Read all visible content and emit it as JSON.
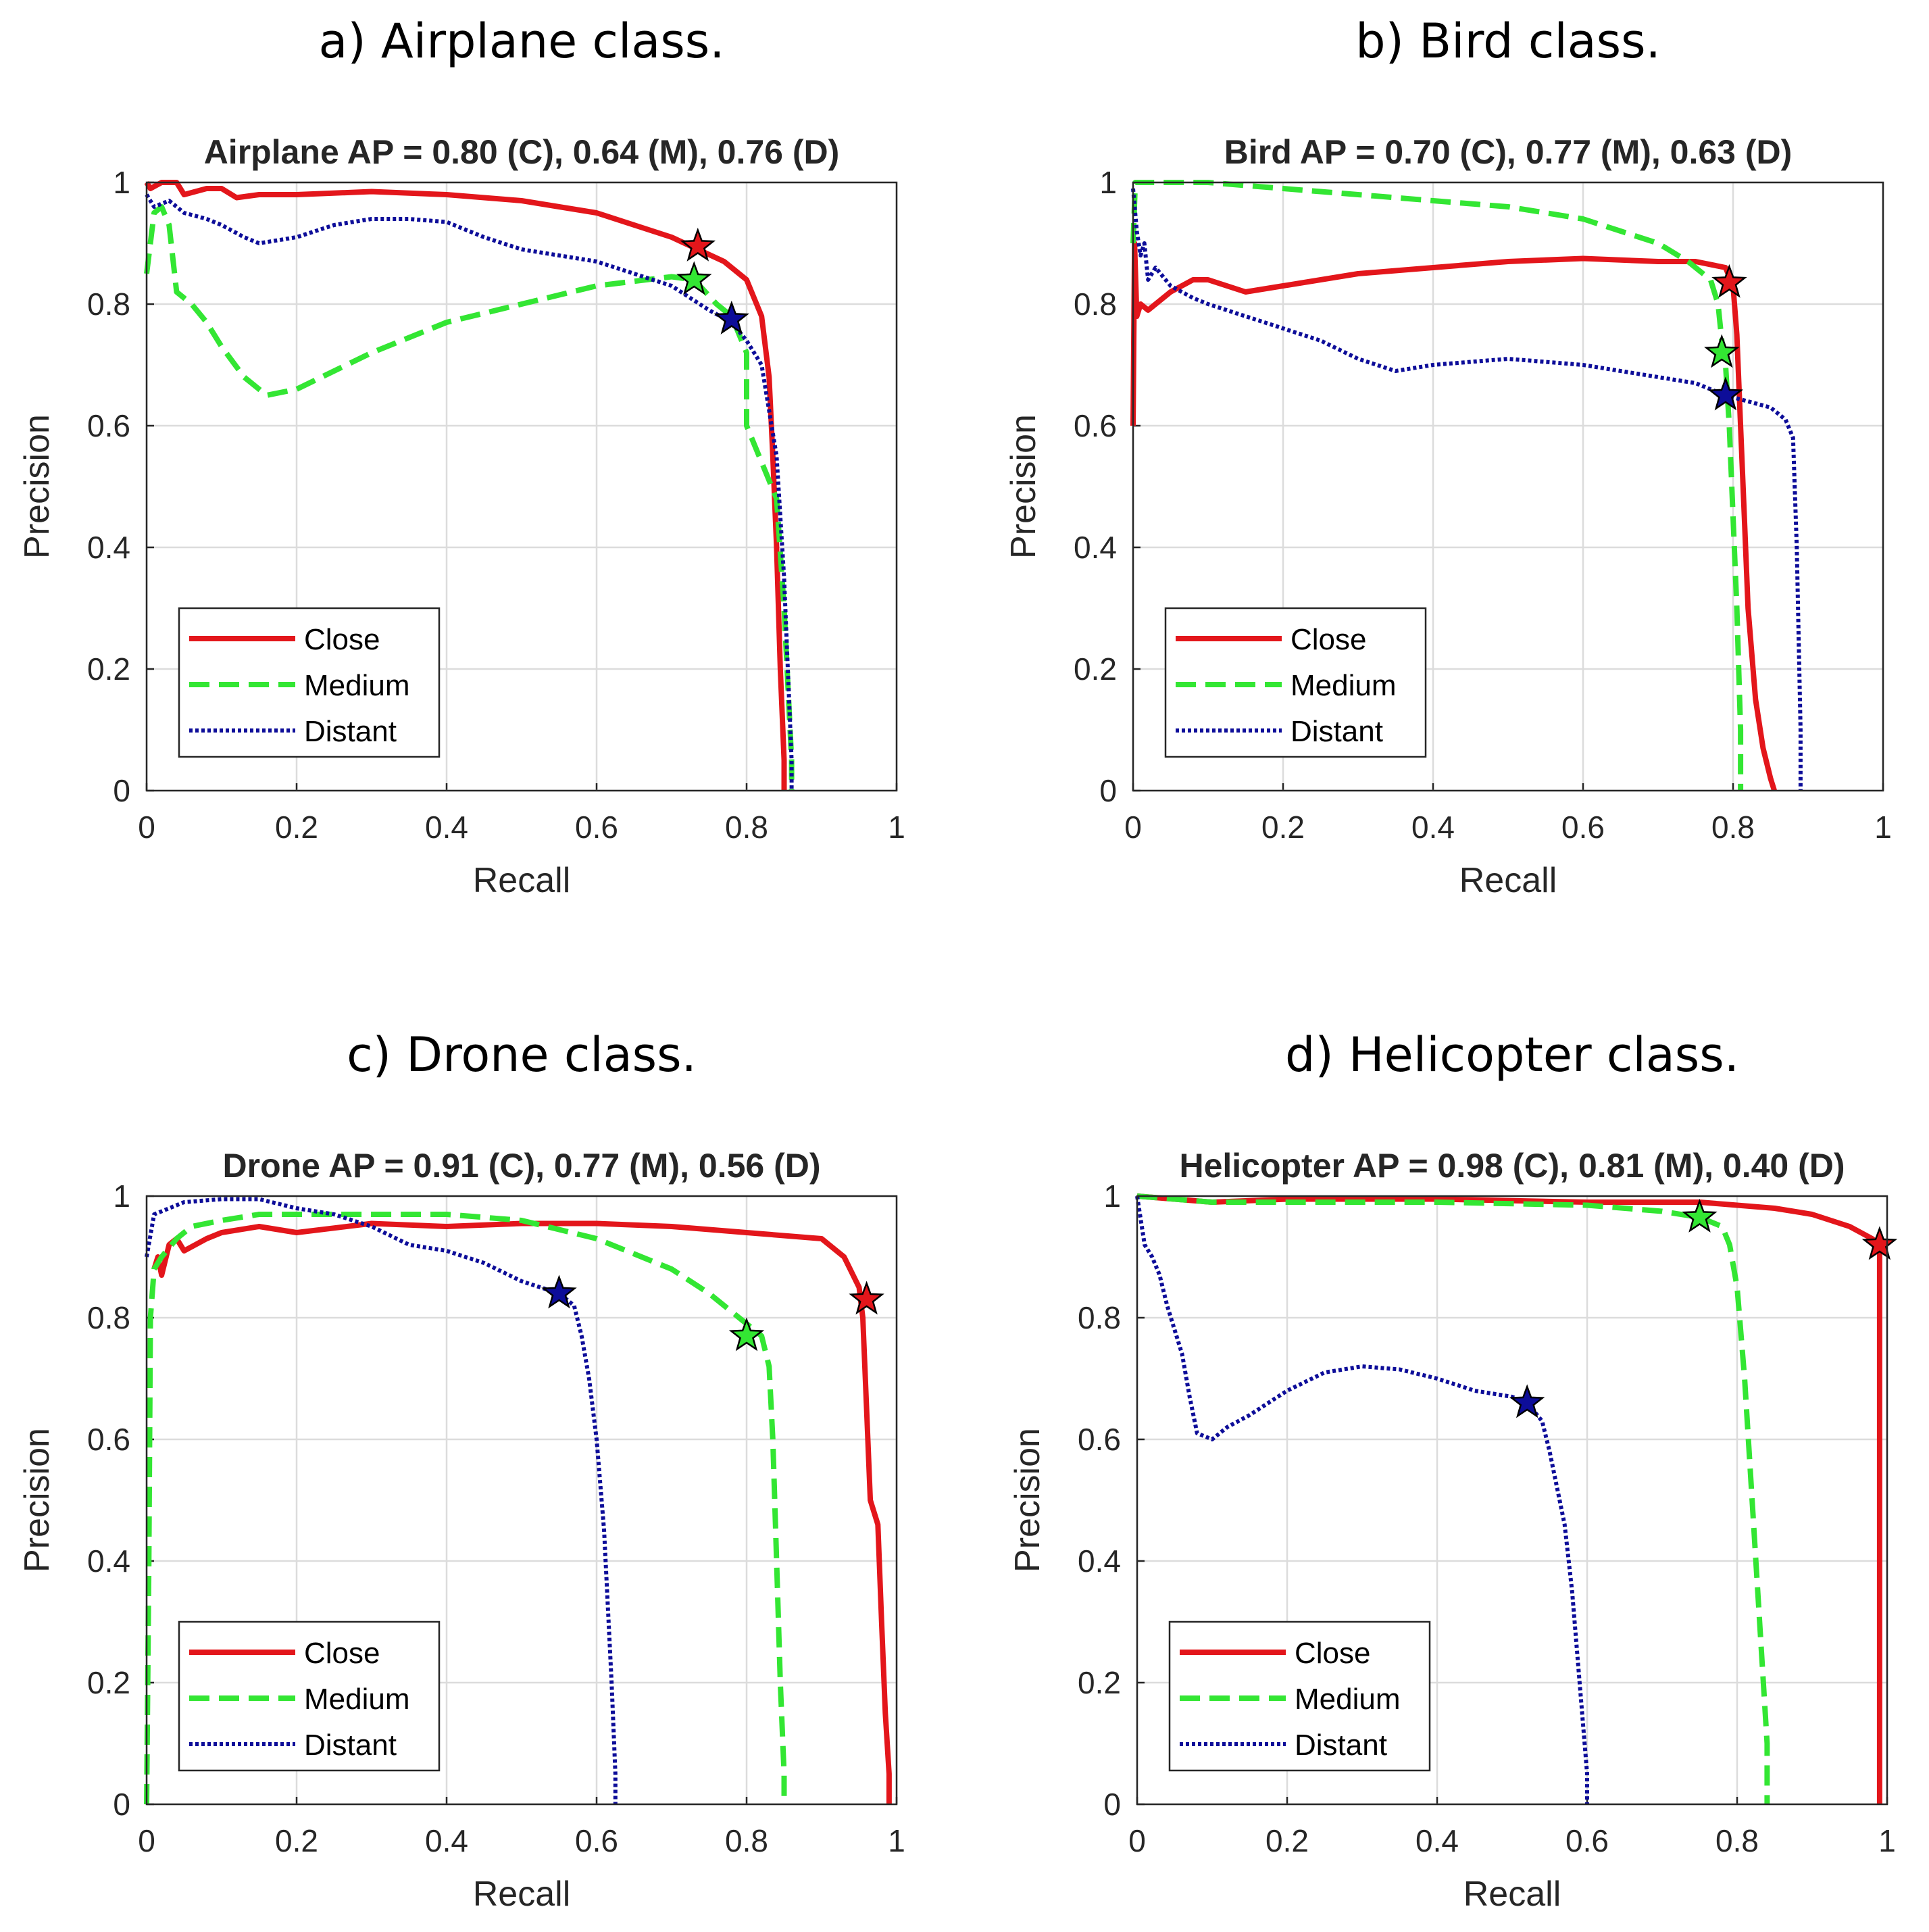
{
  "colors": {
    "close": "#e3161b",
    "medium": "#33e633",
    "distant": "#0d0d99",
    "grid": "#dcdcdc",
    "axis": "#262626"
  },
  "chart_data": [
    {
      "type": "line",
      "caption": "a) Airplane class.",
      "title": "Airplane AP = 0.80 (C), 0.64 (M), 0.76 (D)",
      "xlabel": "Recall",
      "ylabel": "Precision",
      "xlim": [
        0,
        1
      ],
      "ylim": [
        0,
        1
      ],
      "xticks": [
        "0",
        "0.2",
        "0.4",
        "0.6",
        "0.8",
        "1"
      ],
      "yticks": [
        "0",
        "0.2",
        "0.4",
        "0.6",
        "0.8",
        "1"
      ],
      "grid": true,
      "legend_position": "bottom-left",
      "series": [
        {
          "name": "Close",
          "style": "solid",
          "x": [
            0,
            0.005,
            0.02,
            0.04,
            0.05,
            0.08,
            0.1,
            0.12,
            0.15,
            0.2,
            0.3,
            0.4,
            0.5,
            0.6,
            0.7,
            0.735,
            0.77,
            0.8,
            0.82,
            0.83,
            0.835,
            0.84,
            0.845,
            0.85,
            0.85
          ],
          "y": [
            1,
            0.99,
            1,
            1,
            0.98,
            0.99,
            0.99,
            0.975,
            0.98,
            0.98,
            0.985,
            0.98,
            0.97,
            0.95,
            0.91,
            0.89,
            0.87,
            0.84,
            0.78,
            0.68,
            0.55,
            0.4,
            0.2,
            0.05,
            0
          ],
          "marker": [
            0.735,
            0.895
          ]
        },
        {
          "name": "Medium",
          "style": "dashed",
          "x": [
            0,
            0.01,
            0.02,
            0.03,
            0.04,
            0.06,
            0.08,
            0.1,
            0.13,
            0.16,
            0.2,
            0.3,
            0.4,
            0.5,
            0.6,
            0.7,
            0.73,
            0.76,
            0.78,
            0.8,
            0.8,
            0.82,
            0.84,
            0.85,
            0.86,
            0.86
          ],
          "y": [
            0.85,
            0.95,
            0.96,
            0.93,
            0.82,
            0.8,
            0.77,
            0.73,
            0.68,
            0.65,
            0.66,
            0.72,
            0.77,
            0.8,
            0.83,
            0.845,
            0.84,
            0.8,
            0.78,
            0.72,
            0.6,
            0.54,
            0.48,
            0.3,
            0.05,
            0
          ],
          "marker": [
            0.73,
            0.84
          ]
        },
        {
          "name": "Distant",
          "style": "dotted",
          "x": [
            0,
            0.01,
            0.03,
            0.05,
            0.08,
            0.1,
            0.13,
            0.15,
            0.2,
            0.25,
            0.3,
            0.35,
            0.4,
            0.45,
            0.5,
            0.6,
            0.7,
            0.75,
            0.78,
            0.8,
            0.82,
            0.84,
            0.85,
            0.855,
            0.86,
            0.86
          ],
          "y": [
            0.98,
            0.96,
            0.97,
            0.95,
            0.94,
            0.93,
            0.91,
            0.9,
            0.91,
            0.93,
            0.94,
            0.94,
            0.935,
            0.91,
            0.89,
            0.87,
            0.83,
            0.79,
            0.77,
            0.74,
            0.7,
            0.55,
            0.35,
            0.2,
            0.05,
            0
          ],
          "marker": [
            0.78,
            0.775
          ]
        }
      ]
    },
    {
      "type": "line",
      "caption": "b) Bird class.",
      "title": "Bird AP = 0.70 (C), 0.77 (M), 0.63 (D)",
      "xlabel": "Recall",
      "ylabel": "Precision",
      "xlim": [
        0,
        1
      ],
      "ylim": [
        0,
        1
      ],
      "xticks": [
        "0",
        "0.2",
        "0.4",
        "0.6",
        "0.8",
        "1"
      ],
      "yticks": [
        "0",
        "0.2",
        "0.4",
        "0.6",
        "0.8",
        "1"
      ],
      "grid": true,
      "legend_position": "bottom-left",
      "series": [
        {
          "name": "Close",
          "style": "solid",
          "x": [
            0,
            0.002,
            0.005,
            0.01,
            0.02,
            0.03,
            0.05,
            0.08,
            0.1,
            0.15,
            0.2,
            0.3,
            0.4,
            0.5,
            0.6,
            0.7,
            0.75,
            0.79,
            0.8,
            0.805,
            0.81,
            0.815,
            0.82,
            0.83,
            0.84,
            0.85,
            0.855
          ],
          "y": [
            0.6,
            0.9,
            0.78,
            0.8,
            0.79,
            0.8,
            0.82,
            0.84,
            0.84,
            0.82,
            0.83,
            0.85,
            0.86,
            0.87,
            0.875,
            0.87,
            0.87,
            0.86,
            0.83,
            0.75,
            0.6,
            0.45,
            0.3,
            0.15,
            0.07,
            0.02,
            0
          ],
          "marker": [
            0.795,
            0.835
          ]
        },
        {
          "name": "Medium",
          "style": "dashed",
          "x": [
            0,
            0.003,
            0.01,
            0.05,
            0.1,
            0.2,
            0.3,
            0.4,
            0.5,
            0.6,
            0.7,
            0.74,
            0.77,
            0.78,
            0.785,
            0.79,
            0.795,
            0.8,
            0.805,
            0.81,
            0.81
          ],
          "y": [
            0.9,
            1,
            1,
            1,
            1,
            0.99,
            0.98,
            0.97,
            0.96,
            0.94,
            0.9,
            0.87,
            0.84,
            0.8,
            0.74,
            0.7,
            0.6,
            0.45,
            0.3,
            0.1,
            0
          ],
          "marker": [
            0.785,
            0.72
          ]
        },
        {
          "name": "Distant",
          "style": "dotted",
          "x": [
            0,
            0.005,
            0.01,
            0.015,
            0.02,
            0.03,
            0.05,
            0.08,
            0.1,
            0.15,
            0.2,
            0.25,
            0.3,
            0.35,
            0.4,
            0.5,
            0.6,
            0.7,
            0.75,
            0.79,
            0.82,
            0.85,
            0.87,
            0.88,
            0.885,
            0.89,
            0.89
          ],
          "y": [
            0.99,
            0.92,
            0.88,
            0.9,
            0.84,
            0.86,
            0.83,
            0.81,
            0.8,
            0.78,
            0.76,
            0.74,
            0.71,
            0.69,
            0.7,
            0.71,
            0.7,
            0.68,
            0.67,
            0.65,
            0.64,
            0.63,
            0.61,
            0.58,
            0.4,
            0.1,
            0
          ],
          "marker": [
            0.79,
            0.65
          ]
        }
      ]
    },
    {
      "type": "line",
      "caption": "c) Drone class.",
      "title": "Drone AP = 0.91 (C), 0.77 (M), 0.56 (D)",
      "xlabel": "Recall",
      "ylabel": "Precision",
      "xlim": [
        0,
        1
      ],
      "ylim": [
        0,
        1
      ],
      "xticks": [
        "0",
        "0.2",
        "0.4",
        "0.6",
        "0.8",
        "1"
      ],
      "yticks": [
        "0",
        "0.2",
        "0.4",
        "0.6",
        "0.8",
        "1"
      ],
      "grid": true,
      "legend_position": "bottom-left",
      "series": [
        {
          "name": "Close",
          "style": "solid",
          "x": [
            0.01,
            0.015,
            0.02,
            0.03,
            0.04,
            0.05,
            0.08,
            0.1,
            0.15,
            0.2,
            0.3,
            0.4,
            0.5,
            0.6,
            0.7,
            0.8,
            0.9,
            0.93,
            0.95,
            0.955,
            0.96,
            0.965,
            0.97,
            0.975,
            0.98,
            0.985,
            0.99,
            0.99
          ],
          "y": [
            0.88,
            0.9,
            0.87,
            0.92,
            0.93,
            0.91,
            0.93,
            0.94,
            0.95,
            0.94,
            0.955,
            0.95,
            0.955,
            0.955,
            0.95,
            0.94,
            0.93,
            0.9,
            0.85,
            0.8,
            0.65,
            0.5,
            0.48,
            0.46,
            0.3,
            0.15,
            0.05,
            0
          ],
          "marker": [
            0.96,
            0.83
          ]
        },
        {
          "name": "Medium",
          "style": "dashed",
          "x": [
            0,
            0.003,
            0.005,
            0.01,
            0.02,
            0.04,
            0.06,
            0.1,
            0.15,
            0.2,
            0.3,
            0.4,
            0.5,
            0.6,
            0.7,
            0.75,
            0.8,
            0.82,
            0.83,
            0.835,
            0.84,
            0.845,
            0.85,
            0.85
          ],
          "y": [
            0,
            0.4,
            0.8,
            0.88,
            0.9,
            0.93,
            0.95,
            0.96,
            0.97,
            0.97,
            0.97,
            0.97,
            0.96,
            0.93,
            0.88,
            0.84,
            0.79,
            0.77,
            0.72,
            0.6,
            0.4,
            0.2,
            0.05,
            0
          ],
          "marker": [
            0.8,
            0.77
          ]
        },
        {
          "name": "Distant",
          "style": "dotted",
          "x": [
            0,
            0.01,
            0.03,
            0.05,
            0.1,
            0.15,
            0.2,
            0.25,
            0.3,
            0.35,
            0.4,
            0.45,
            0.5,
            0.55,
            0.57,
            0.58,
            0.59,
            0.6,
            0.61,
            0.62,
            0.625,
            0.625
          ],
          "y": [
            0.9,
            0.97,
            0.98,
            0.99,
            0.995,
            0.995,
            0.98,
            0.97,
            0.95,
            0.92,
            0.91,
            0.89,
            0.86,
            0.84,
            0.82,
            0.77,
            0.7,
            0.6,
            0.45,
            0.2,
            0.05,
            0
          ],
          "marker": [
            0.55,
            0.84
          ]
        }
      ]
    },
    {
      "type": "line",
      "caption": "d) Helicopter class.",
      "title": "Helicopter AP = 0.98 (C), 0.81 (M), 0.40 (D)",
      "xlabel": "Recall",
      "ylabel": "Precision",
      "xlim": [
        0,
        1
      ],
      "ylim": [
        0,
        1
      ],
      "xticks": [
        "0",
        "0.2",
        "0.4",
        "0.6",
        "0.8",
        "1"
      ],
      "yticks": [
        "0",
        "0.2",
        "0.4",
        "0.6",
        "0.8",
        "1"
      ],
      "grid": true,
      "legend_position": "bottom-left",
      "series": [
        {
          "name": "Close",
          "style": "solid",
          "x": [
            0,
            0.1,
            0.2,
            0.4,
            0.6,
            0.75,
            0.8,
            0.85,
            0.9,
            0.95,
            0.98,
            0.99,
            0.99,
            0.99
          ],
          "y": [
            1,
            0.99,
            0.995,
            0.995,
            0.99,
            0.99,
            0.985,
            0.98,
            0.97,
            0.95,
            0.93,
            0.92,
            0.5,
            0
          ],
          "marker": [
            0.99,
            0.92
          ]
        },
        {
          "name": "Medium",
          "style": "dashed",
          "x": [
            0,
            0.1,
            0.2,
            0.4,
            0.6,
            0.7,
            0.75,
            0.78,
            0.79,
            0.8,
            0.81,
            0.82,
            0.83,
            0.84,
            0.84
          ],
          "y": [
            1,
            0.99,
            0.99,
            0.99,
            0.985,
            0.975,
            0.965,
            0.95,
            0.92,
            0.85,
            0.7,
            0.5,
            0.3,
            0.1,
            0
          ],
          "marker": [
            0.75,
            0.965
          ]
        },
        {
          "name": "Distant",
          "style": "dotted",
          "x": [
            0,
            0.01,
            0.02,
            0.03,
            0.04,
            0.05,
            0.06,
            0.07,
            0.08,
            0.1,
            0.12,
            0.15,
            0.2,
            0.25,
            0.3,
            0.35,
            0.4,
            0.45,
            0.5,
            0.52,
            0.54,
            0.55,
            0.56,
            0.57,
            0.58,
            0.59,
            0.6,
            0.6
          ],
          "y": [
            1,
            0.92,
            0.9,
            0.87,
            0.82,
            0.78,
            0.74,
            0.67,
            0.61,
            0.6,
            0.62,
            0.64,
            0.68,
            0.71,
            0.72,
            0.715,
            0.7,
            0.68,
            0.67,
            0.66,
            0.63,
            0.58,
            0.52,
            0.46,
            0.35,
            0.2,
            0.05,
            0
          ],
          "marker": [
            0.52,
            0.66
          ]
        }
      ]
    }
  ]
}
